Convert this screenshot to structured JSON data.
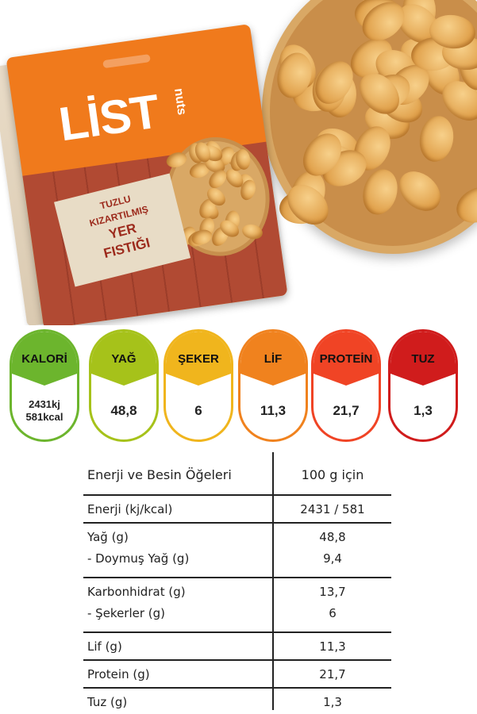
{
  "product": {
    "brand": "LİST",
    "brand_sub": "nuts",
    "label_lines": [
      "TUZLU",
      "KIZARTILMIŞ",
      "YER",
      "FISTIĞI"
    ]
  },
  "badges": [
    {
      "label": "KALORİ",
      "value_lines": [
        "2431kj",
        "581kcal"
      ],
      "color": "#6cb52d"
    },
    {
      "label": "YAĞ",
      "value_lines": [
        "48,8"
      ],
      "color": "#a6c21a"
    },
    {
      "label": "ŞEKER",
      "value_lines": [
        "6"
      ],
      "color": "#f0b51d"
    },
    {
      "label": "LİF",
      "value_lines": [
        "11,3"
      ],
      "color": "#f0821e"
    },
    {
      "label": "PROTEİN",
      "value_lines": [
        "21,7"
      ],
      "color": "#f04425"
    },
    {
      "label": "TUZ",
      "value_lines": [
        "1,3"
      ],
      "color": "#d01c1c"
    }
  ],
  "table": {
    "header": {
      "left": "Enerji ve Besin Öğeleri",
      "right": "100 g için"
    },
    "rows": [
      {
        "left": [
          "Enerji (kj/kcal)"
        ],
        "right": [
          "2431 / 581"
        ]
      },
      {
        "left": [
          "Yağ (g)",
          "- Doymuş Yağ (g)"
        ],
        "right": [
          "48,8",
          "9,4"
        ]
      },
      {
        "left": [
          "Karbonhidrat (g)",
          "- Şekerler (g)"
        ],
        "right": [
          "13,7",
          "6"
        ]
      },
      {
        "left": [
          "Lif (g)"
        ],
        "right": [
          "11,3"
        ]
      },
      {
        "left": [
          "Protein (g)"
        ],
        "right": [
          "21,7"
        ]
      },
      {
        "left": [
          "Tuz (g)"
        ],
        "right": [
          "1,3"
        ]
      }
    ]
  }
}
